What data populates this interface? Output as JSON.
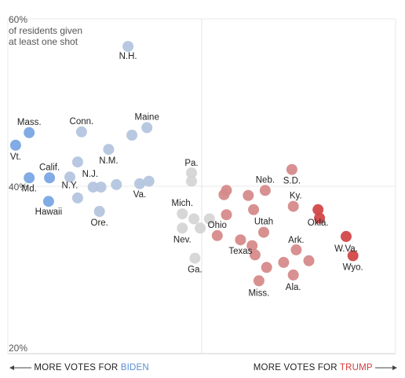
{
  "colors": {
    "biden_strong": "#7aa6e3",
    "biden_lean": "#b4c5de",
    "tossup": "#d5d5d5",
    "trump_lean": "#d68a8a",
    "trump_strong": "#d24848",
    "biden_text": "#5b8fd6",
    "trump_text": "#d33a3a"
  },
  "footer": {
    "left_prefix": "MORE VOTES FOR",
    "left_party": "BIDEN",
    "right_prefix": "MORE VOTES FOR",
    "right_party": "TRUMP"
  },
  "chart_data": {
    "type": "scatter",
    "title": "",
    "ylabel": "of residents given at least one shot",
    "ylabel_lines": [
      "of residents given",
      "at least one shot"
    ],
    "xlabel": "",
    "ylim": [
      20,
      60
    ],
    "xlim": [
      -40,
      40
    ],
    "yticks": [
      {
        "value": 60,
        "label": "60%"
      },
      {
        "value": 40,
        "label": "40%"
      },
      {
        "value": 20,
        "label": "20%"
      }
    ],
    "x_divider": 0,
    "grid": true,
    "points": [
      {
        "state": "N.H.",
        "label": "N.H.",
        "x": -15.2,
        "y": 56.7,
        "group": "biden_lean"
      },
      {
        "state": "Mass.",
        "label": "Mass.",
        "x": -35.6,
        "y": 46.4,
        "group": "biden_strong"
      },
      {
        "state": "Vt.",
        "label": "Vt.",
        "x": -38.4,
        "y": 44.9,
        "group": "biden_strong"
      },
      {
        "state": "Md.",
        "label": "Md.",
        "x": -35.6,
        "y": 41.0,
        "group": "biden_strong"
      },
      {
        "state": "Calif.",
        "label": "Calif.",
        "x": -31.4,
        "y": 41.0,
        "group": "biden_strong"
      },
      {
        "state": "Hawaii",
        "label": "Hawaii",
        "x": -31.6,
        "y": 38.2,
        "group": "biden_strong"
      },
      {
        "state": "Conn.",
        "label": "Conn.",
        "x": -24.8,
        "y": 46.5,
        "group": "biden_lean"
      },
      {
        "state": "Maine",
        "label": "Maine",
        "x": -11.3,
        "y": 47.0,
        "group": "biden_lean"
      },
      {
        "state": "",
        "label": "",
        "x": -14.4,
        "y": 46.1,
        "group": "biden_lean"
      },
      {
        "state": "N.M.",
        "label": "N.M.",
        "x": -19.2,
        "y": 44.4,
        "group": "biden_lean"
      },
      {
        "state": "N.J.",
        "label": "N.J.",
        "x": -25.6,
        "y": 42.9,
        "group": "biden_lean"
      },
      {
        "state": "N.Y.",
        "label": "N.Y.",
        "x": -27.2,
        "y": 41.1,
        "group": "biden_lean"
      },
      {
        "state": "",
        "label": "",
        "x": -25.6,
        "y": 38.6,
        "group": "biden_lean"
      },
      {
        "state": "",
        "label": "",
        "x": -22.4,
        "y": 39.9,
        "group": "biden_lean"
      },
      {
        "state": "",
        "label": "",
        "x": -20.8,
        "y": 39.9,
        "group": "biden_lean"
      },
      {
        "state": "",
        "label": "",
        "x": -17.6,
        "y": 40.2,
        "group": "biden_lean"
      },
      {
        "state": "Ore.",
        "label": "Ore.",
        "x": -21.1,
        "y": 37.0,
        "group": "biden_lean"
      },
      {
        "state": "Va.",
        "label": "Va.",
        "x": -12.8,
        "y": 40.3,
        "group": "biden_lean"
      },
      {
        "state": "",
        "label": "",
        "x": -10.9,
        "y": 40.6,
        "group": "biden_lean"
      },
      {
        "state": "Pa.",
        "label": "Pa.",
        "x": -2.1,
        "y": 41.6,
        "group": "tossup"
      },
      {
        "state": "",
        "label": "",
        "x": -2.1,
        "y": 40.6,
        "group": "tossup"
      },
      {
        "state": "Mich.",
        "label": "Mich.",
        "x": -4.0,
        "y": 36.7,
        "group": "tossup"
      },
      {
        "state": "",
        "label": "",
        "x": -1.6,
        "y": 36.1,
        "group": "tossup"
      },
      {
        "state": "",
        "label": "",
        "x": 1.6,
        "y": 36.1,
        "group": "tossup"
      },
      {
        "state": "Nev.",
        "label": "Nev.",
        "x": -4.0,
        "y": 35.0,
        "group": "tossup"
      },
      {
        "state": "",
        "label": "",
        "x": -0.3,
        "y": 35.0,
        "group": "tossup"
      },
      {
        "state": "Ga.",
        "label": "Ga.",
        "x": -1.4,
        "y": 31.4,
        "group": "tossup"
      },
      {
        "state": "",
        "label": "",
        "x": 5.1,
        "y": 39.5,
        "group": "trump_lean"
      },
      {
        "state": "",
        "label": "",
        "x": 4.6,
        "y": 39.0,
        "group": "trump_lean"
      },
      {
        "state": "",
        "label": "",
        "x": 9.6,
        "y": 38.9,
        "group": "trump_lean"
      },
      {
        "state": "Neb.",
        "label": "Neb.",
        "x": 13.1,
        "y": 39.5,
        "group": "trump_lean"
      },
      {
        "state": "",
        "label": "",
        "x": 5.1,
        "y": 36.6,
        "group": "trump_lean"
      },
      {
        "state": "",
        "label": "",
        "x": 10.7,
        "y": 37.2,
        "group": "trump_lean"
      },
      {
        "state": "Ohio",
        "label": "Ohio",
        "x": 3.2,
        "y": 34.1,
        "group": "trump_lean"
      },
      {
        "state": "Texas",
        "label": "Texas",
        "x": 8.0,
        "y": 33.6,
        "group": "trump_lean"
      },
      {
        "state": "Utah",
        "label": "Utah",
        "x": 12.8,
        "y": 34.5,
        "group": "trump_lean"
      },
      {
        "state": "",
        "label": "",
        "x": 10.4,
        "y": 32.9,
        "group": "trump_lean"
      },
      {
        "state": "",
        "label": "",
        "x": 11.0,
        "y": 31.8,
        "group": "trump_lean"
      },
      {
        "state": "Miss.",
        "label": "Miss.",
        "x": 11.8,
        "y": 28.7,
        "group": "trump_lean"
      },
      {
        "state": "",
        "label": "",
        "x": 13.4,
        "y": 30.3,
        "group": "trump_lean"
      },
      {
        "state": "S.D.",
        "label": "S.D.",
        "x": 18.6,
        "y": 42.0,
        "group": "trump_lean"
      },
      {
        "state": "Ky.",
        "label": "Ky.",
        "x": 18.9,
        "y": 37.6,
        "group": "trump_lean"
      },
      {
        "state": "Ark.",
        "label": "Ark.",
        "x": 19.5,
        "y": 32.4,
        "group": "trump_lean"
      },
      {
        "state": "",
        "label": "",
        "x": 16.9,
        "y": 30.9,
        "group": "trump_lean"
      },
      {
        "state": "",
        "label": "",
        "x": 22.1,
        "y": 31.1,
        "group": "trump_lean"
      },
      {
        "state": "Ala.",
        "label": "Ala.",
        "x": 18.9,
        "y": 29.4,
        "group": "trump_lean"
      },
      {
        "state": "Okla.",
        "label": "Okla.",
        "x": 24.0,
        "y": 37.2,
        "group": "trump_strong"
      },
      {
        "state": "",
        "label": "",
        "x": 24.3,
        "y": 36.2,
        "group": "trump_strong"
      },
      {
        "state": "W.Va.",
        "label": "W.Va.",
        "x": 29.8,
        "y": 34.0,
        "group": "trump_strong"
      },
      {
        "state": "Wyo.",
        "label": "Wyo.",
        "x": 31.2,
        "y": 31.7,
        "group": "trump_strong"
      }
    ]
  }
}
